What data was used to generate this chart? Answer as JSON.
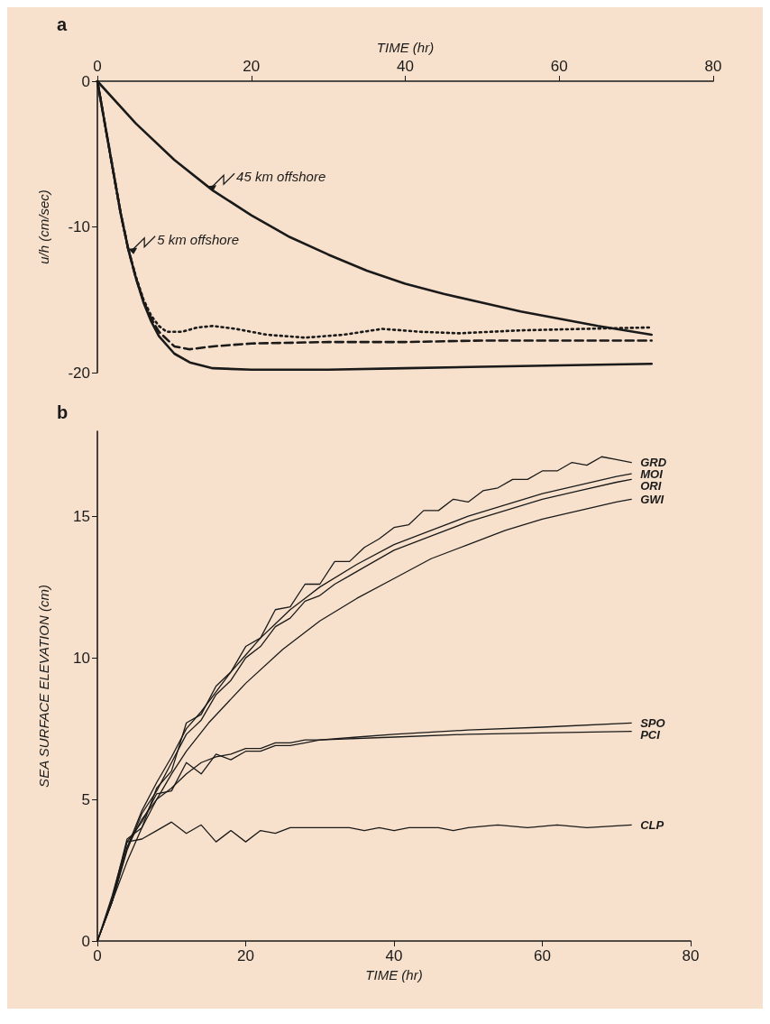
{
  "chart_data": [
    {
      "type": "line",
      "title": "a",
      "xlabel": "TIME (hr)",
      "ylabel": "u/h (cm/sec)",
      "xlim": [
        0,
        80
      ],
      "xticks": [
        0,
        20,
        40,
        60,
        80
      ],
      "ylim": [
        -20,
        0
      ],
      "yticks": [
        0,
        -10,
        -20
      ],
      "marker": "none",
      "annotations": [
        {
          "text": "45 km offshore",
          "x": 14.3,
          "y": -7.2
        },
        {
          "text": "5 km offshore",
          "x": 4,
          "y": -11.5
        }
      ],
      "series": [
        {
          "color": "#1a1a1a",
          "line_style": "solid",
          "x": [
            0,
            5,
            10,
            15,
            20,
            25,
            30,
            35,
            40,
            45,
            50,
            55,
            60,
            65,
            72
          ],
          "values": [
            0,
            -2.9,
            -5.4,
            -7.5,
            -9.2,
            -10.7,
            -11.9,
            -13.0,
            -13.9,
            -14.6,
            -15.2,
            -15.8,
            -16.3,
            -16.8,
            -17.4
          ]
        },
        {
          "color": "#1a1a1a",
          "line_style": "solid",
          "x": [
            0,
            1,
            2,
            3,
            4,
            5,
            6,
            7,
            8,
            10,
            12,
            15,
            20,
            30,
            40,
            50,
            60,
            72
          ],
          "values": [
            0,
            -3,
            -6,
            -9,
            -11.5,
            -13.5,
            -15.2,
            -16.5,
            -17.5,
            -18.7,
            -19.3,
            -19.7,
            -19.8,
            -19.8,
            -19.7,
            -19.6,
            -19.5,
            -19.4
          ]
        },
        {
          "color": "#1a1a1a",
          "line_style": "dashed",
          "x": [
            0,
            1,
            2,
            3,
            4,
            5,
            6,
            7,
            8,
            10,
            12,
            15,
            20,
            30,
            40,
            50,
            60,
            72
          ],
          "values": [
            0,
            -3,
            -6,
            -9,
            -11.5,
            -13.5,
            -15.1,
            -16.3,
            -17.2,
            -18.2,
            -18.4,
            -18.2,
            -18.0,
            -17.9,
            -17.9,
            -17.8,
            -17.8,
            -17.8
          ]
        },
        {
          "color": "#1a1a1a",
          "line_style": "dotted",
          "x": [
            0,
            1,
            2,
            3,
            4,
            5,
            6,
            7,
            8,
            9,
            11,
            13,
            15,
            18,
            22,
            27,
            32,
            37,
            42,
            47,
            55,
            63,
            72
          ],
          "values": [
            0,
            -3,
            -6,
            -9,
            -11.5,
            -13.4,
            -15.0,
            -16.1,
            -16.8,
            -17.2,
            -17.2,
            -16.9,
            -16.8,
            -17.0,
            -17.4,
            -17.6,
            -17.4,
            -17.0,
            -17.2,
            -17.3,
            -17.1,
            -17.0,
            -16.9
          ]
        }
      ]
    },
    {
      "type": "line",
      "title": "b",
      "xlabel": "TIME (hr)",
      "ylabel": "SEA SURFACE ELEVATION (cm)",
      "xlim": [
        0,
        80
      ],
      "xticks": [
        0,
        20,
        40,
        60,
        80
      ],
      "ylim": [
        0,
        18
      ],
      "yticks": [
        0,
        5,
        10,
        15
      ],
      "marker": "none",
      "line_style": "solid",
      "series": [
        {
          "name": "GRD",
          "color": "#1a1a1a",
          "x": [
            0,
            2,
            4,
            6,
            8,
            10,
            12,
            14,
            16,
            18,
            20,
            22,
            24,
            26,
            28,
            30,
            32,
            34,
            36,
            38,
            40,
            42,
            44,
            46,
            48,
            50,
            52,
            54,
            56,
            58,
            60,
            62,
            64,
            66,
            68,
            70,
            72
          ],
          "values": [
            0,
            1.5,
            3.6,
            4.0,
            5.4,
            6.0,
            7.7,
            8.0,
            9.0,
            9.5,
            10.4,
            10.7,
            11.7,
            11.8,
            12.6,
            12.6,
            13.4,
            13.4,
            13.9,
            14.2,
            14.6,
            14.7,
            15.2,
            15.2,
            15.6,
            15.5,
            15.9,
            16.0,
            16.3,
            16.3,
            16.6,
            16.6,
            16.9,
            16.8,
            17.1,
            17.0,
            16.9
          ]
        },
        {
          "name": "MOI",
          "color": "#1a1a1a",
          "x": [
            0,
            2,
            4,
            6,
            8,
            10,
            12,
            14,
            16,
            18,
            20,
            22,
            24,
            26,
            28,
            30,
            35,
            40,
            45,
            50,
            55,
            60,
            65,
            70,
            72
          ],
          "values": [
            0,
            1.4,
            3.3,
            4.6,
            5.6,
            6.5,
            7.5,
            8.1,
            8.8,
            9.5,
            10.1,
            10.7,
            11.2,
            11.7,
            12.1,
            12.5,
            13.3,
            14.0,
            14.5,
            15.0,
            15.4,
            15.8,
            16.1,
            16.4,
            16.5
          ]
        },
        {
          "name": "ORI",
          "color": "#1a1a1a",
          "x": [
            0,
            2,
            4,
            6,
            8,
            10,
            12,
            14,
            16,
            18,
            20,
            22,
            24,
            26,
            28,
            30,
            32,
            34,
            36,
            40,
            45,
            50,
            55,
            60,
            65,
            70,
            72
          ],
          "values": [
            0,
            1.4,
            3.2,
            4.5,
            5.3,
            6.3,
            7.3,
            7.8,
            8.7,
            9.2,
            10.0,
            10.4,
            11.1,
            11.4,
            12.0,
            12.2,
            12.6,
            12.9,
            13.2,
            13.8,
            14.3,
            14.8,
            15.2,
            15.6,
            15.9,
            16.2,
            16.3
          ]
        },
        {
          "name": "GWI",
          "color": "#1a1a1a",
          "x": [
            0,
            2,
            4,
            6,
            8,
            10,
            12,
            15,
            20,
            25,
            30,
            35,
            40,
            45,
            50,
            55,
            60,
            65,
            70,
            72
          ],
          "values": [
            0,
            1.4,
            2.8,
            4.0,
            5.0,
            5.9,
            6.7,
            7.7,
            9.1,
            10.3,
            11.3,
            12.1,
            12.8,
            13.5,
            14.0,
            14.5,
            14.9,
            15.2,
            15.5,
            15.6
          ]
        },
        {
          "name": "SPO",
          "color": "#1a1a1a",
          "x": [
            0,
            2,
            4,
            6,
            8,
            10,
            12,
            14,
            16,
            18,
            20,
            22,
            24,
            26,
            28,
            30,
            35,
            40,
            50,
            60,
            72
          ],
          "values": [
            0,
            1.4,
            3.5,
            4.2,
            5.2,
            5.3,
            6.3,
            5.9,
            6.6,
            6.4,
            6.7,
            6.7,
            6.9,
            6.9,
            7.0,
            7.1,
            7.2,
            7.3,
            7.45,
            7.55,
            7.7
          ]
        },
        {
          "name": "PCI",
          "color": "#1a1a1a",
          "x": [
            0,
            2,
            4,
            6,
            8,
            10,
            12,
            14,
            16,
            18,
            20,
            22,
            24,
            26,
            28,
            30,
            40,
            50,
            60,
            72
          ],
          "values": [
            0,
            1.4,
            3.3,
            4.3,
            5.0,
            5.4,
            5.9,
            6.3,
            6.5,
            6.6,
            6.8,
            6.8,
            7.0,
            7.0,
            7.1,
            7.1,
            7.2,
            7.3,
            7.35,
            7.4
          ]
        },
        {
          "name": "CLP",
          "color": "#1a1a1a",
          "x": [
            0,
            2,
            4,
            6,
            8,
            10,
            12,
            14,
            16,
            18,
            20,
            22,
            24,
            26,
            30,
            34,
            36,
            38,
            40,
            42,
            44,
            46,
            48,
            50,
            54,
            58,
            62,
            66,
            72
          ],
          "values": [
            0,
            1.6,
            3.5,
            3.6,
            3.9,
            4.2,
            3.8,
            4.1,
            3.5,
            3.9,
            3.5,
            3.9,
            3.8,
            4.0,
            4.0,
            4.0,
            3.9,
            4.0,
            3.9,
            4.0,
            4.0,
            4.0,
            3.9,
            4.0,
            4.1,
            4.0,
            4.1,
            4.0,
            4.1
          ]
        }
      ]
    }
  ]
}
